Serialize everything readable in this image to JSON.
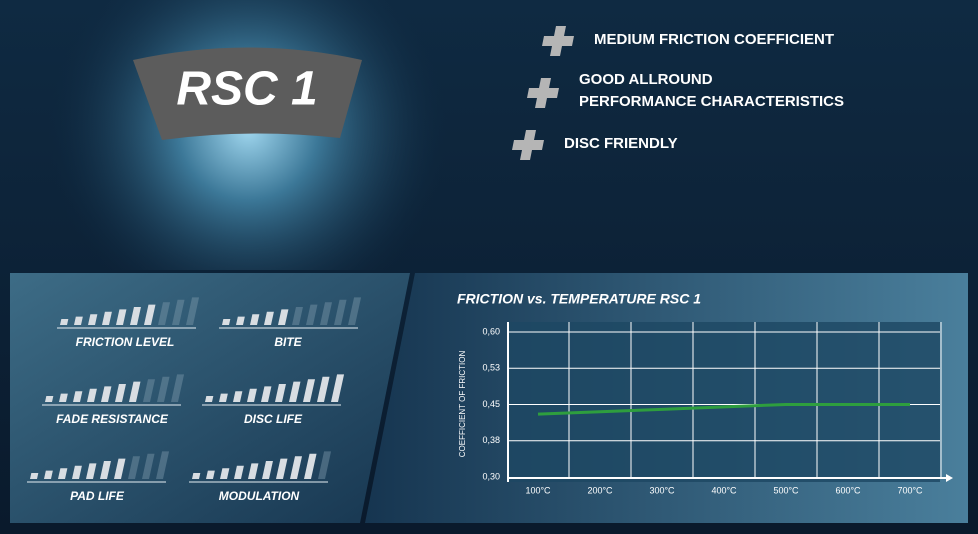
{
  "header": {
    "logo": "RSC 1"
  },
  "features": [
    {
      "lines": [
        "MEDIUM FRICTION COEFFICIENT"
      ]
    },
    {
      "lines": [
        "GOOD ALLROUND",
        "PERFORMANCE CHARACTERISTICS"
      ]
    },
    {
      "lines": [
        "DISC FRIENDLY"
      ]
    }
  ],
  "ratings": [
    {
      "label": "FRICTION LEVEL",
      "level": 7
    },
    {
      "label": "BITE",
      "level": 5
    },
    {
      "label": "FADE RESISTANCE",
      "level": 7
    },
    {
      "label": "DISC LIFE",
      "level": 10
    },
    {
      "label": "PAD LIFE",
      "level": 7
    },
    {
      "label": "MODULATION",
      "level": 9
    }
  ],
  "chart_data": {
    "type": "line",
    "title": "FRICTION vs. TEMPERATURE RSC 1",
    "y_label": "COEFFICIENT OF FRICTION",
    "categories": [
      "100°C",
      "200°C",
      "300°C",
      "400°C",
      "500°C",
      "600°C",
      "700°C"
    ],
    "series": [
      {
        "name": "RSC 1",
        "color": "#2e9e3e",
        "values": [
          0.43,
          0.435,
          0.44,
          0.445,
          0.45,
          0.45,
          0.45
        ]
      }
    ],
    "ylim": [
      0.3,
      0.6
    ],
    "yticks": [
      {
        "value": 0.3,
        "label": "0,30"
      },
      {
        "value": 0.375,
        "label": "0,38"
      },
      {
        "value": 0.45,
        "label": "0,45"
      },
      {
        "value": 0.525,
        "label": "0,53"
      },
      {
        "value": 0.6,
        "label": "0,60"
      }
    ],
    "grid": true
  }
}
